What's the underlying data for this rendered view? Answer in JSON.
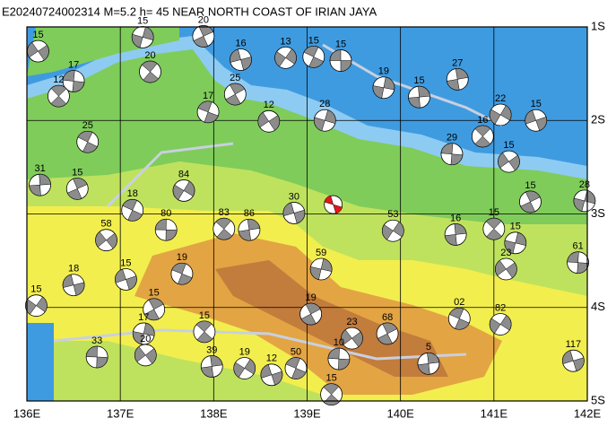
{
  "title": "E20240724002314 M=5.2 h= 45 NEAR NORTH COAST OF IRIAN JAYA",
  "lon_axis": {
    "range": [
      136,
      142
    ],
    "ticks": [
      {
        "value": 136,
        "label": "136E"
      },
      {
        "value": 137,
        "label": "137E"
      },
      {
        "value": 138,
        "label": "138E"
      },
      {
        "value": 139,
        "label": "139E"
      },
      {
        "value": 140,
        "label": "140E"
      },
      {
        "value": 141,
        "label": "141E"
      },
      {
        "value": 142,
        "label": "142E"
      }
    ]
  },
  "lat_axis": {
    "range": [
      -1,
      -5
    ],
    "ticks": [
      {
        "value": -1,
        "label": "1S"
      },
      {
        "value": -2,
        "label": "2S"
      },
      {
        "value": -3,
        "label": "3S"
      },
      {
        "value": -4,
        "label": "4S"
      },
      {
        "value": -5,
        "label": "5S"
      }
    ]
  },
  "main_event": {
    "lon": 139.28,
    "lat": -2.9
  },
  "events": [
    {
      "depth": "15",
      "lon": 139.36,
      "lat": -1.36
    },
    {
      "depth": "20",
      "lon": 137.32,
      "lat": -1.48
    },
    {
      "depth": "27",
      "lon": 140.61,
      "lat": -1.56
    },
    {
      "depth": "22",
      "lon": 141.07,
      "lat": -1.94
    },
    {
      "depth": "15",
      "lon": 141.45,
      "lat": -2.0
    },
    {
      "depth": "17",
      "lon": 137.94,
      "lat": -1.91
    },
    {
      "depth": "25",
      "lon": 138.23,
      "lat": -1.72
    },
    {
      "depth": "19",
      "lon": 139.82,
      "lat": -1.65
    },
    {
      "depth": "58",
      "lon": 136.85,
      "lat": -3.28
    },
    {
      "depth": "80",
      "lon": 137.49,
      "lat": -3.17
    },
    {
      "depth": "83",
      "lon": 138.11,
      "lat": -3.16
    },
    {
      "depth": "86",
      "lon": 138.38,
      "lat": -3.17
    },
    {
      "depth": "84",
      "lon": 137.68,
      "lat": -2.75
    },
    {
      "depth": "15",
      "lon": 137.06,
      "lat": -3.7
    },
    {
      "depth": "19",
      "lon": 137.66,
      "lat": -3.64
    },
    {
      "depth": "15",
      "lon": 137.36,
      "lat": -4.02
    },
    {
      "depth": "17",
      "lon": 137.25,
      "lat": -4.28
    },
    {
      "depth": "20",
      "lon": 137.27,
      "lat": -4.51
    },
    {
      "depth": "33",
      "lon": 136.75,
      "lat": -4.53
    },
    {
      "depth": "15",
      "lon": 137.9,
      "lat": -4.26
    },
    {
      "depth": "39",
      "lon": 137.98,
      "lat": -4.63
    },
    {
      "depth": "19",
      "lon": 138.33,
      "lat": -4.65
    },
    {
      "depth": "12",
      "lon": 138.62,
      "lat": -4.72
    },
    {
      "depth": "50",
      "lon": 138.88,
      "lat": -4.65
    },
    {
      "depth": "19",
      "lon": 139.04,
      "lat": -4.07
    },
    {
      "depth": "59",
      "lon": 139.15,
      "lat": -3.59
    },
    {
      "depth": "23",
      "lon": 139.48,
      "lat": -4.33
    },
    {
      "depth": "10",
      "lon": 139.34,
      "lat": -4.55
    },
    {
      "depth": "15",
      "lon": 139.26,
      "lat": -4.93
    },
    {
      "depth": "5",
      "lon": 140.3,
      "lat": -4.6
    },
    {
      "depth": "82",
      "lon": 141.07,
      "lat": -4.18
    },
    {
      "depth": "117",
      "lon": 141.85,
      "lat": -4.57
    },
    {
      "depth": "02",
      "lon": 140.63,
      "lat": -4.12
    },
    {
      "depth": "68",
      "lon": 139.86,
      "lat": -4.28
    },
    {
      "depth": "15",
      "lon": 141.23,
      "lat": -3.31
    },
    {
      "depth": "23",
      "lon": 141.13,
      "lat": -3.59
    },
    {
      "depth": "61",
      "lon": 141.9,
      "lat": -3.52
    },
    {
      "depth": "15",
      "lon": 141.0,
      "lat": -3.16
    },
    {
      "depth": "16",
      "lon": 140.59,
      "lat": -3.22
    },
    {
      "depth": "53",
      "lon": 139.92,
      "lat": -3.18
    },
    {
      "depth": "30",
      "lon": 138.86,
      "lat": -2.99
    },
    {
      "depth": "18",
      "lon": 137.13,
      "lat": -2.96
    },
    {
      "depth": "15",
      "lon": 141.39,
      "lat": -2.87
    },
    {
      "depth": "28",
      "lon": 141.97,
      "lat": -2.86
    },
    {
      "depth": "15",
      "lon": 141.16,
      "lat": -2.44
    },
    {
      "depth": "29",
      "lon": 140.55,
      "lat": -2.36
    },
    {
      "depth": "16",
      "lon": 140.88,
      "lat": -2.17
    },
    {
      "depth": "15",
      "lon": 140.2,
      "lat": -1.75
    },
    {
      "depth": "13",
      "lon": 138.77,
      "lat": -1.33
    },
    {
      "depth": "16",
      "lon": 138.29,
      "lat": -1.35
    },
    {
      "depth": "15",
      "lon": 139.07,
      "lat": -1.32
    },
    {
      "depth": "20",
      "lon": 137.89,
      "lat": -1.1
    },
    {
      "depth": "15",
      "lon": 137.24,
      "lat": -1.11
    },
    {
      "depth": "15",
      "lon": 136.12,
      "lat": -1.26
    },
    {
      "depth": "17",
      "lon": 136.5,
      "lat": -1.58
    },
    {
      "depth": "12",
      "lon": 136.34,
      "lat": -1.74
    },
    {
      "depth": "31",
      "lon": 136.14,
      "lat": -2.69
    },
    {
      "depth": "15",
      "lon": 136.1,
      "lat": -3.98
    },
    {
      "depth": "18",
      "lon": 136.5,
      "lat": -3.76
    },
    {
      "depth": "25",
      "lon": 136.65,
      "lat": -2.23
    },
    {
      "depth": "15",
      "lon": 136.54,
      "lat": -2.73
    },
    {
      "depth": "28",
      "lon": 139.19,
      "lat": -2.0
    },
    {
      "depth": "12",
      "lon": 138.59,
      "lat": -2.01
    }
  ]
}
